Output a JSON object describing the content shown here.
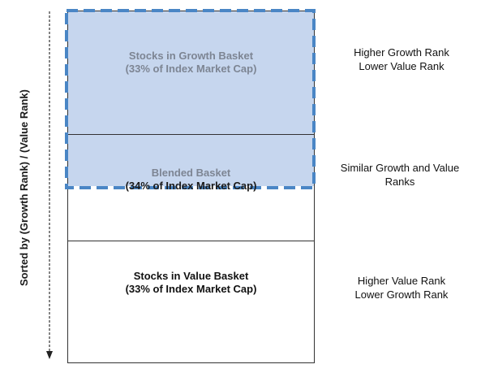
{
  "axis": {
    "label": "Sorted by (Growth Rank) / (Value Rank)"
  },
  "growth_basket": {
    "title": "Stocks in Growth Basket",
    "subtitle": "(33% of Index Market Cap)"
  },
  "blended_basket": {
    "title": "Blended Basket",
    "subtitle": "(34% of Index Market Cap)"
  },
  "value_basket": {
    "title": "Stocks in Value Basket",
    "subtitle": "(33% of Index Market Cap)"
  },
  "side_labels": {
    "top_line1": "Higher Growth Rank",
    "top_line2": "Lower Value Rank",
    "middle_line1": "Similar Growth and Value",
    "middle_line2": "Ranks",
    "bottom_line1": "Higher Value Rank",
    "bottom_line2": "Lower Growth Rank"
  },
  "colors": {
    "growth_fill": "#c6d6ee",
    "dashed_border": "#4a86c5",
    "text": "#1a1a1a",
    "muted_text": "#7d8593"
  }
}
